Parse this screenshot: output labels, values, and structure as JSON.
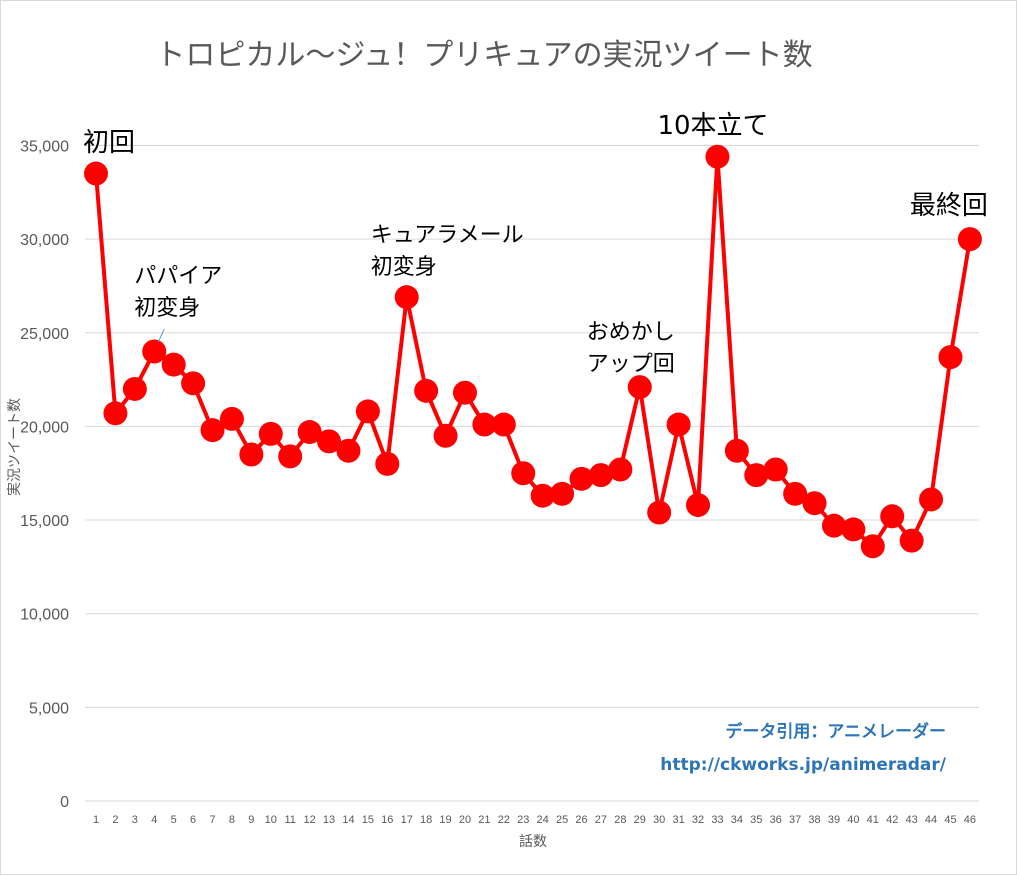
{
  "chart_data": {
    "type": "line",
    "title": "トロピカル～ジュ！プリキュアの実況ツイート数",
    "xlabel": "話数",
    "ylabel": "実況ツイート数",
    "ylim": [
      0,
      35000
    ],
    "y_ticks": [
      "0",
      "5,000",
      "10,000",
      "15,000",
      "20,000",
      "25,000",
      "30,000",
      "35,000"
    ],
    "y_tick_values": [
      0,
      5000,
      10000,
      15000,
      20000,
      25000,
      30000,
      35000
    ],
    "grid": true,
    "legend": "none",
    "series_color": "#ff0000",
    "categories": [
      "1",
      "2",
      "3",
      "4",
      "5",
      "6",
      "7",
      "8",
      "9",
      "10",
      "11",
      "12",
      "13",
      "14",
      "15",
      "16",
      "17",
      "18",
      "19",
      "20",
      "21",
      "22",
      "23",
      "24",
      "25",
      "26",
      "27",
      "28",
      "29",
      "30",
      "31",
      "32",
      "33",
      "34",
      "35",
      "36",
      "37",
      "38",
      "39",
      "40",
      "41",
      "42",
      "43",
      "44",
      "45",
      "46"
    ],
    "values": [
      33500,
      20700,
      22000,
      24000,
      23300,
      22300,
      19800,
      20400,
      18500,
      19600,
      18400,
      19700,
      19200,
      18700,
      20800,
      18000,
      26900,
      21900,
      19500,
      21800,
      20100,
      20100,
      17500,
      16300,
      16400,
      17200,
      17400,
      17700,
      22100,
      15400,
      20100,
      15800,
      34400,
      18700,
      17400,
      17700,
      16400,
      15900,
      14700,
      14500,
      13600,
      15200,
      13900,
      16100,
      23700,
      30000
    ],
    "annotations": [
      {
        "episode": "1",
        "lines": [
          "初回"
        ],
        "size": "big"
      },
      {
        "episode": "4",
        "lines": [
          "パパイア",
          "初変身"
        ],
        "size": "normal"
      },
      {
        "episode": "17",
        "lines": [
          "キュアラメール",
          "初変身"
        ],
        "size": "normal"
      },
      {
        "episode": "29",
        "lines": [
          "おめかし",
          "アップ回"
        ],
        "size": "normal"
      },
      {
        "episode": "33",
        "lines": [
          "10本立て"
        ],
        "size": "big"
      },
      {
        "episode": "46",
        "lines": [
          "最終回"
        ],
        "size": "big"
      }
    ],
    "credit_lines": [
      "データ引用：アニメレーダー",
      "http://ckworks.jp/animeradar/"
    ]
  }
}
